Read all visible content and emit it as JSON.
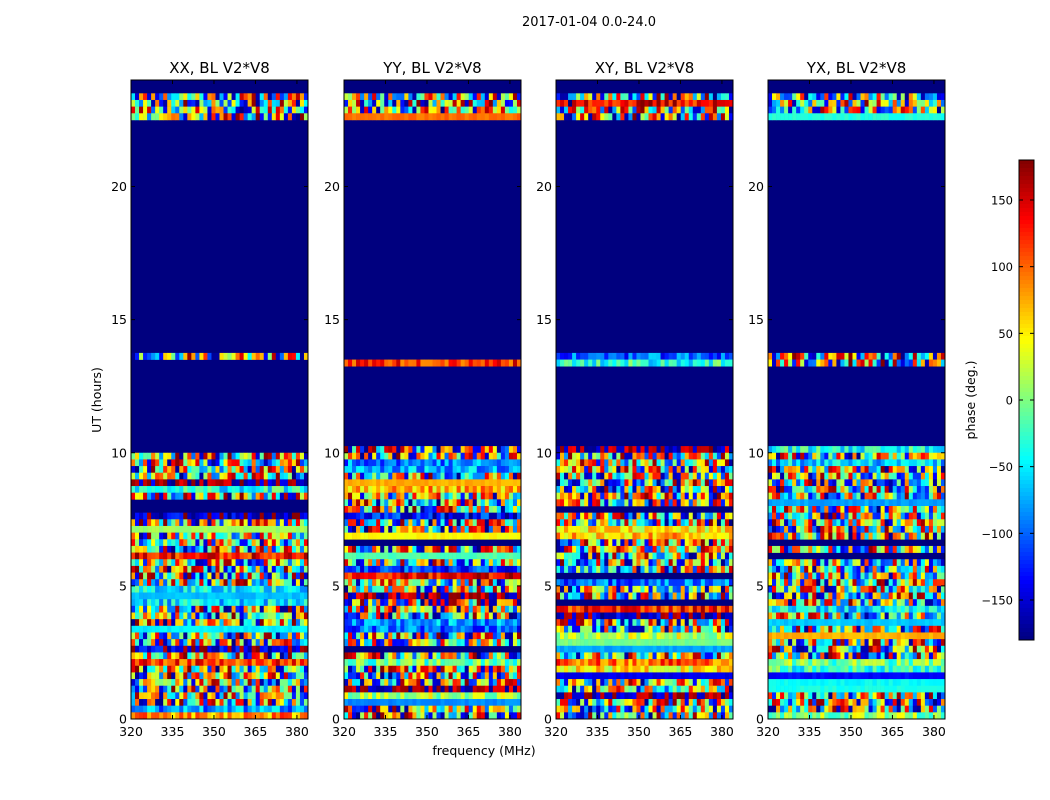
{
  "chart_data": {
    "type": "heatmap",
    "title": "2017-01-04 0.0-24.0",
    "xlabel": "frequency (MHz)",
    "ylabel": "UT (hours)",
    "xlim": [
      320,
      384
    ],
    "ylim": [
      0,
      24
    ],
    "xticks": [
      320,
      335,
      350,
      365,
      380
    ],
    "yticks": [
      0,
      5,
      10,
      15,
      20
    ],
    "panels": [
      {
        "title": "XX, BL V2*V8",
        "seed": 11
      },
      {
        "title": "YY, BL V2*V8",
        "seed": 23
      },
      {
        "title": "XY, BL V2*V8",
        "seed": 37
      },
      {
        "title": "YX, BL V2*V8",
        "seed": 53
      }
    ],
    "flagged_hours": [
      [
        10.25,
        13.3
      ],
      [
        13.85,
        22.5
      ]
    ],
    "observed_hours": [
      [
        0,
        10.25
      ],
      [
        13.3,
        13.85
      ],
      [
        22.5,
        23.6
      ]
    ],
    "colorbar": {
      "label": "phase (deg.)",
      "colormap": "jet",
      "range": [
        -180,
        180
      ],
      "ticks": [
        -150,
        -100,
        -50,
        0,
        50,
        100,
        150
      ]
    }
  }
}
